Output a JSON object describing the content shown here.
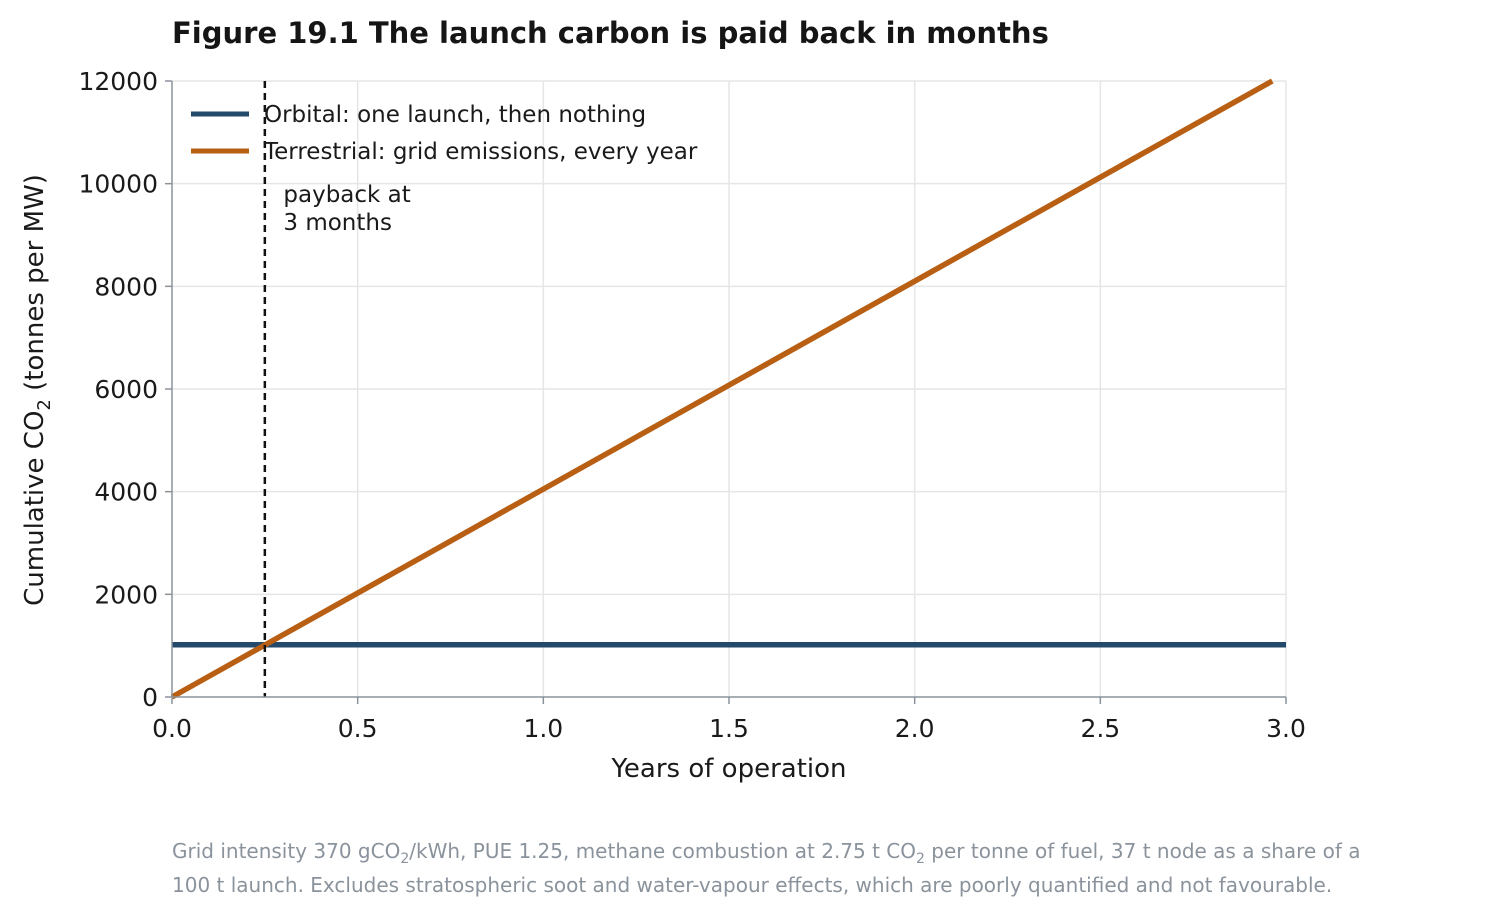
{
  "chart_data": {
    "type": "line",
    "title": "Figure 19.1  The launch carbon is paid back in months",
    "xlabel": "Years of operation",
    "ylabel_main": "Cumulative CO",
    "ylabel_sub": "2",
    "ylabel_tail": " (tonnes per MW)",
    "xlim": [
      0,
      3.0
    ],
    "ylim": [
      0,
      12000
    ],
    "xticks": [
      0,
      0.5,
      1.0,
      1.5,
      2.0,
      2.5,
      3.0
    ],
    "xtick_labels": [
      "0.0",
      "0.5",
      "1.0",
      "1.5",
      "2.0",
      "2.5",
      "3.0"
    ],
    "yticks": [
      0,
      2000,
      4000,
      6000,
      8000,
      10000,
      12000
    ],
    "ytick_labels": [
      "0",
      "2000",
      "4000",
      "6000",
      "8000",
      "10000",
      "12000"
    ],
    "grid": true,
    "legend_position": "top-left",
    "series": [
      {
        "name": "Orbital: one launch, then nothing",
        "color": "#234a6b",
        "x": [
          0,
          3.0
        ],
        "y": [
          1018,
          1018
        ]
      },
      {
        "name": "Terrestrial: grid emissions, every year",
        "color": "#b85f14",
        "x": [
          0,
          3.0
        ],
        "y": [
          0,
          12150
        ]
      }
    ],
    "vline": {
      "x": 0.25,
      "color": "#111111",
      "style": "dashed"
    },
    "annotation": {
      "line1": "payback at",
      "line2": "3 months",
      "x": 0.3,
      "y": 9800
    },
    "footnote": {
      "line1_a": "Grid intensity 370 gCO",
      "line1_sub": "2",
      "line1_b": "/kWh, PUE 1.25, methane combustion at 2.75 t CO",
      "line1_sub2": "2",
      "line1_c": " per tonne of fuel, 37 t node as a share of a",
      "line2": "100 t launch. Excludes stratospheric soot and water-vapour effects, which are poorly quantified and not favourable."
    }
  }
}
